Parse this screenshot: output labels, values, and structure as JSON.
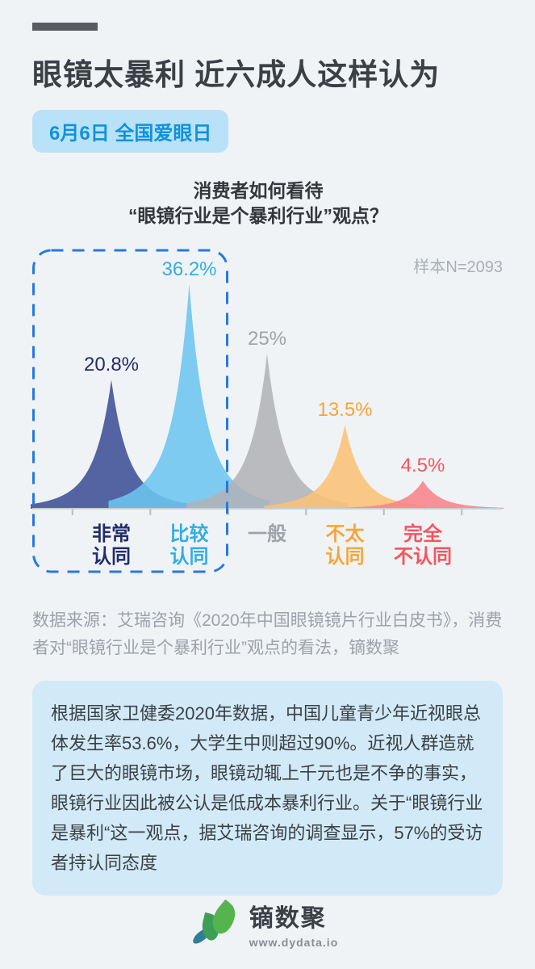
{
  "header": {
    "title": "眼镜太暴利 近六成人这样认为",
    "badge": {
      "text": "6月6日 全国爱眼日",
      "bg": "#b9e2f8",
      "color": "#1092dc"
    }
  },
  "chart_data": {
    "type": "area",
    "title": "消费者如何看待 “眼镜行业是个暴利行业”观点？",
    "title_lines": [
      "消费者如何看待",
      "“眼镜行业是个暴利行业”观点？"
    ],
    "sample_note": "样本N=2093",
    "categories": [
      "非常认同",
      "比较认同",
      "一般",
      "不太认同",
      "完全不认同"
    ],
    "category_lines": [
      [
        "非常",
        "认同"
      ],
      [
        "比较",
        "认同"
      ],
      [
        "一般"
      ],
      [
        "不太",
        "认同"
      ],
      [
        "完全",
        "不认同"
      ]
    ],
    "values": [
      20.8,
      36.2,
      25,
      13.5,
      4.5
    ],
    "value_labels": [
      "20.8%",
      "36.2%",
      "25%",
      "13.5%",
      "4.5%"
    ],
    "colors": [
      "#3e4f96",
      "#6cc5f0",
      "#b1b3b7",
      "#fac276",
      "#f8838b"
    ],
    "label_colors": [
      "#222c6c",
      "#33ade4",
      "#9ea3aa",
      "#f6a637",
      "#f4555f"
    ],
    "highlight_group_indexes": [
      0,
      1
    ],
    "highlight_border_color": "#2779df",
    "axis_color": "#cbcfd5",
    "unit": "%",
    "ylim": [
      0,
      40
    ],
    "grid": false,
    "legend": "none"
  },
  "source": {
    "text": "数据来源：艾瑞咨询《2020年中国眼镜镜片行业白皮书》，消费者对“眼镜行业是个暴利行业”观点的看法，镝数聚"
  },
  "summary_box": {
    "text": "根据国家卫健委2020年数据，中国儿童青少年近视眼总体发生率53.6%，大学生中则超过90%。近视人群造就了巨大的眼镜市场，眼镜动辄上千元也是不争的事实，眼镜行业因此被公认是低成本暴利行业。关于“眼镜行业是暴利“这一观点，据艾瑞咨询的调查显示，57%的受访者持认同态度"
  },
  "footer": {
    "logo_text": "镝数聚",
    "url": "www.dydata.io"
  }
}
